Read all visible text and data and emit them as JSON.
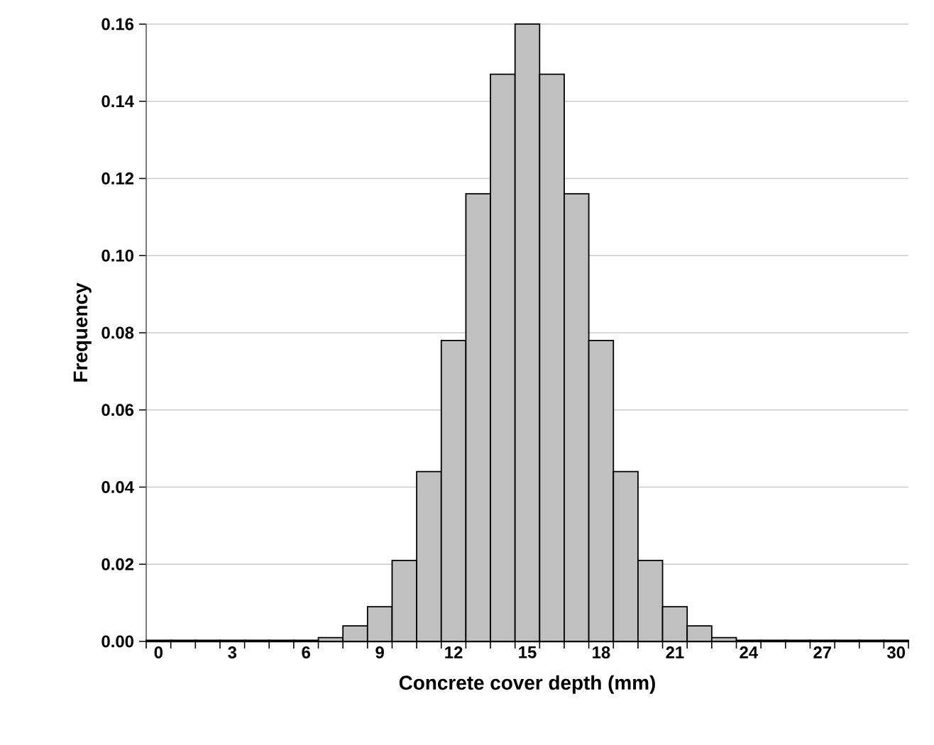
{
  "chart_data": {
    "type": "histogram",
    "xlabel": "Concrete cover depth (mm)",
    "ylabel": "Frequency",
    "color": "#c0c0c0",
    "bins": [
      -0.5,
      0.5,
      1.5,
      2.5,
      3.5,
      4.5,
      5.5,
      6.5,
      7.5,
      8.5,
      9.5,
      10.5,
      11.5,
      12.5,
      13.5,
      14.5,
      15.5,
      16.5,
      17.5,
      18.5,
      19.5,
      20.5,
      21.5,
      22.5,
      23.5,
      24.5,
      25.5,
      26.5,
      27.5,
      28.5,
      29.5,
      30.5
    ],
    "values": [
      0.0003,
      0.0003,
      0.0003,
      0.0003,
      0.0003,
      0.0003,
      0.0003,
      0.001,
      0.004,
      0.009,
      0.021,
      0.044,
      0.078,
      0.116,
      0.147,
      0.16,
      0.147,
      0.116,
      0.078,
      0.044,
      0.021,
      0.009,
      0.004,
      0.001,
      0.0003,
      0.0003,
      0.0003,
      0.0003,
      0.0003,
      0.0003,
      0.0003
    ],
    "xlim": [
      -0.5,
      30.5
    ],
    "xticks": [
      0,
      3,
      6,
      9,
      12,
      15,
      18,
      21,
      24,
      27,
      30,
      {
        "value": -0.5,
        "label": null
      },
      {
        "value": 0.5,
        "label": null
      },
      {
        "value": 1.5,
        "label": null
      },
      {
        "value": 2.5,
        "label": null
      },
      {
        "value": 3.5,
        "label": null
      },
      {
        "value": 4.5,
        "label": null
      },
      {
        "value": 5.5,
        "label": null
      },
      {
        "value": 6.5,
        "label": null
      },
      {
        "value": 7.5,
        "label": null
      },
      {
        "value": 8.5,
        "label": null
      },
      {
        "value": 9.5,
        "label": null
      },
      {
        "value": 10.5,
        "label": null
      },
      {
        "value": 11.5,
        "label": null
      },
      {
        "value": 12.5,
        "label": null
      },
      {
        "value": 13.5,
        "label": null
      },
      {
        "value": 14.5,
        "label": null
      },
      {
        "value": 15.5,
        "label": null
      },
      {
        "value": 16.5,
        "label": null
      },
      {
        "value": 17.5,
        "label": null
      },
      {
        "value": 18.5,
        "label": null
      },
      {
        "value": 19.5,
        "label": null
      },
      {
        "value": 20.5,
        "label": null
      },
      {
        "value": 21.5,
        "label": null
      },
      {
        "value": 22.5,
        "label": null
      },
      {
        "value": 23.5,
        "label": null
      },
      {
        "value": 24.5,
        "label": null
      },
      {
        "value": 25.5,
        "label": null
      },
      {
        "value": 26.5,
        "label": null
      },
      {
        "value": 27.5,
        "label": null
      },
      {
        "value": 28.5,
        "label": null
      },
      {
        "value": 29.5,
        "label": null
      },
      {
        "value": 30.5,
        "label": null
      }
    ],
    "ylim": [
      0,
      0.16
    ],
    "yticks": [
      {
        "value": 0,
        "label": "0.00"
      },
      {
        "value": 0.02,
        "label": "0.02"
      },
      {
        "value": 0.04,
        "label": "0.04"
      },
      {
        "value": 0.06,
        "label": "0.06"
      },
      {
        "value": 0.08,
        "label": "0.08"
      },
      {
        "value": 0.1,
        "label": "0.10"
      },
      {
        "value": 0.12,
        "label": "0.12"
      },
      {
        "value": 0.14,
        "label": "0.14"
      },
      {
        "value": 0.16,
        "label": "0.16"
      }
    ],
    "grid": "y"
  }
}
